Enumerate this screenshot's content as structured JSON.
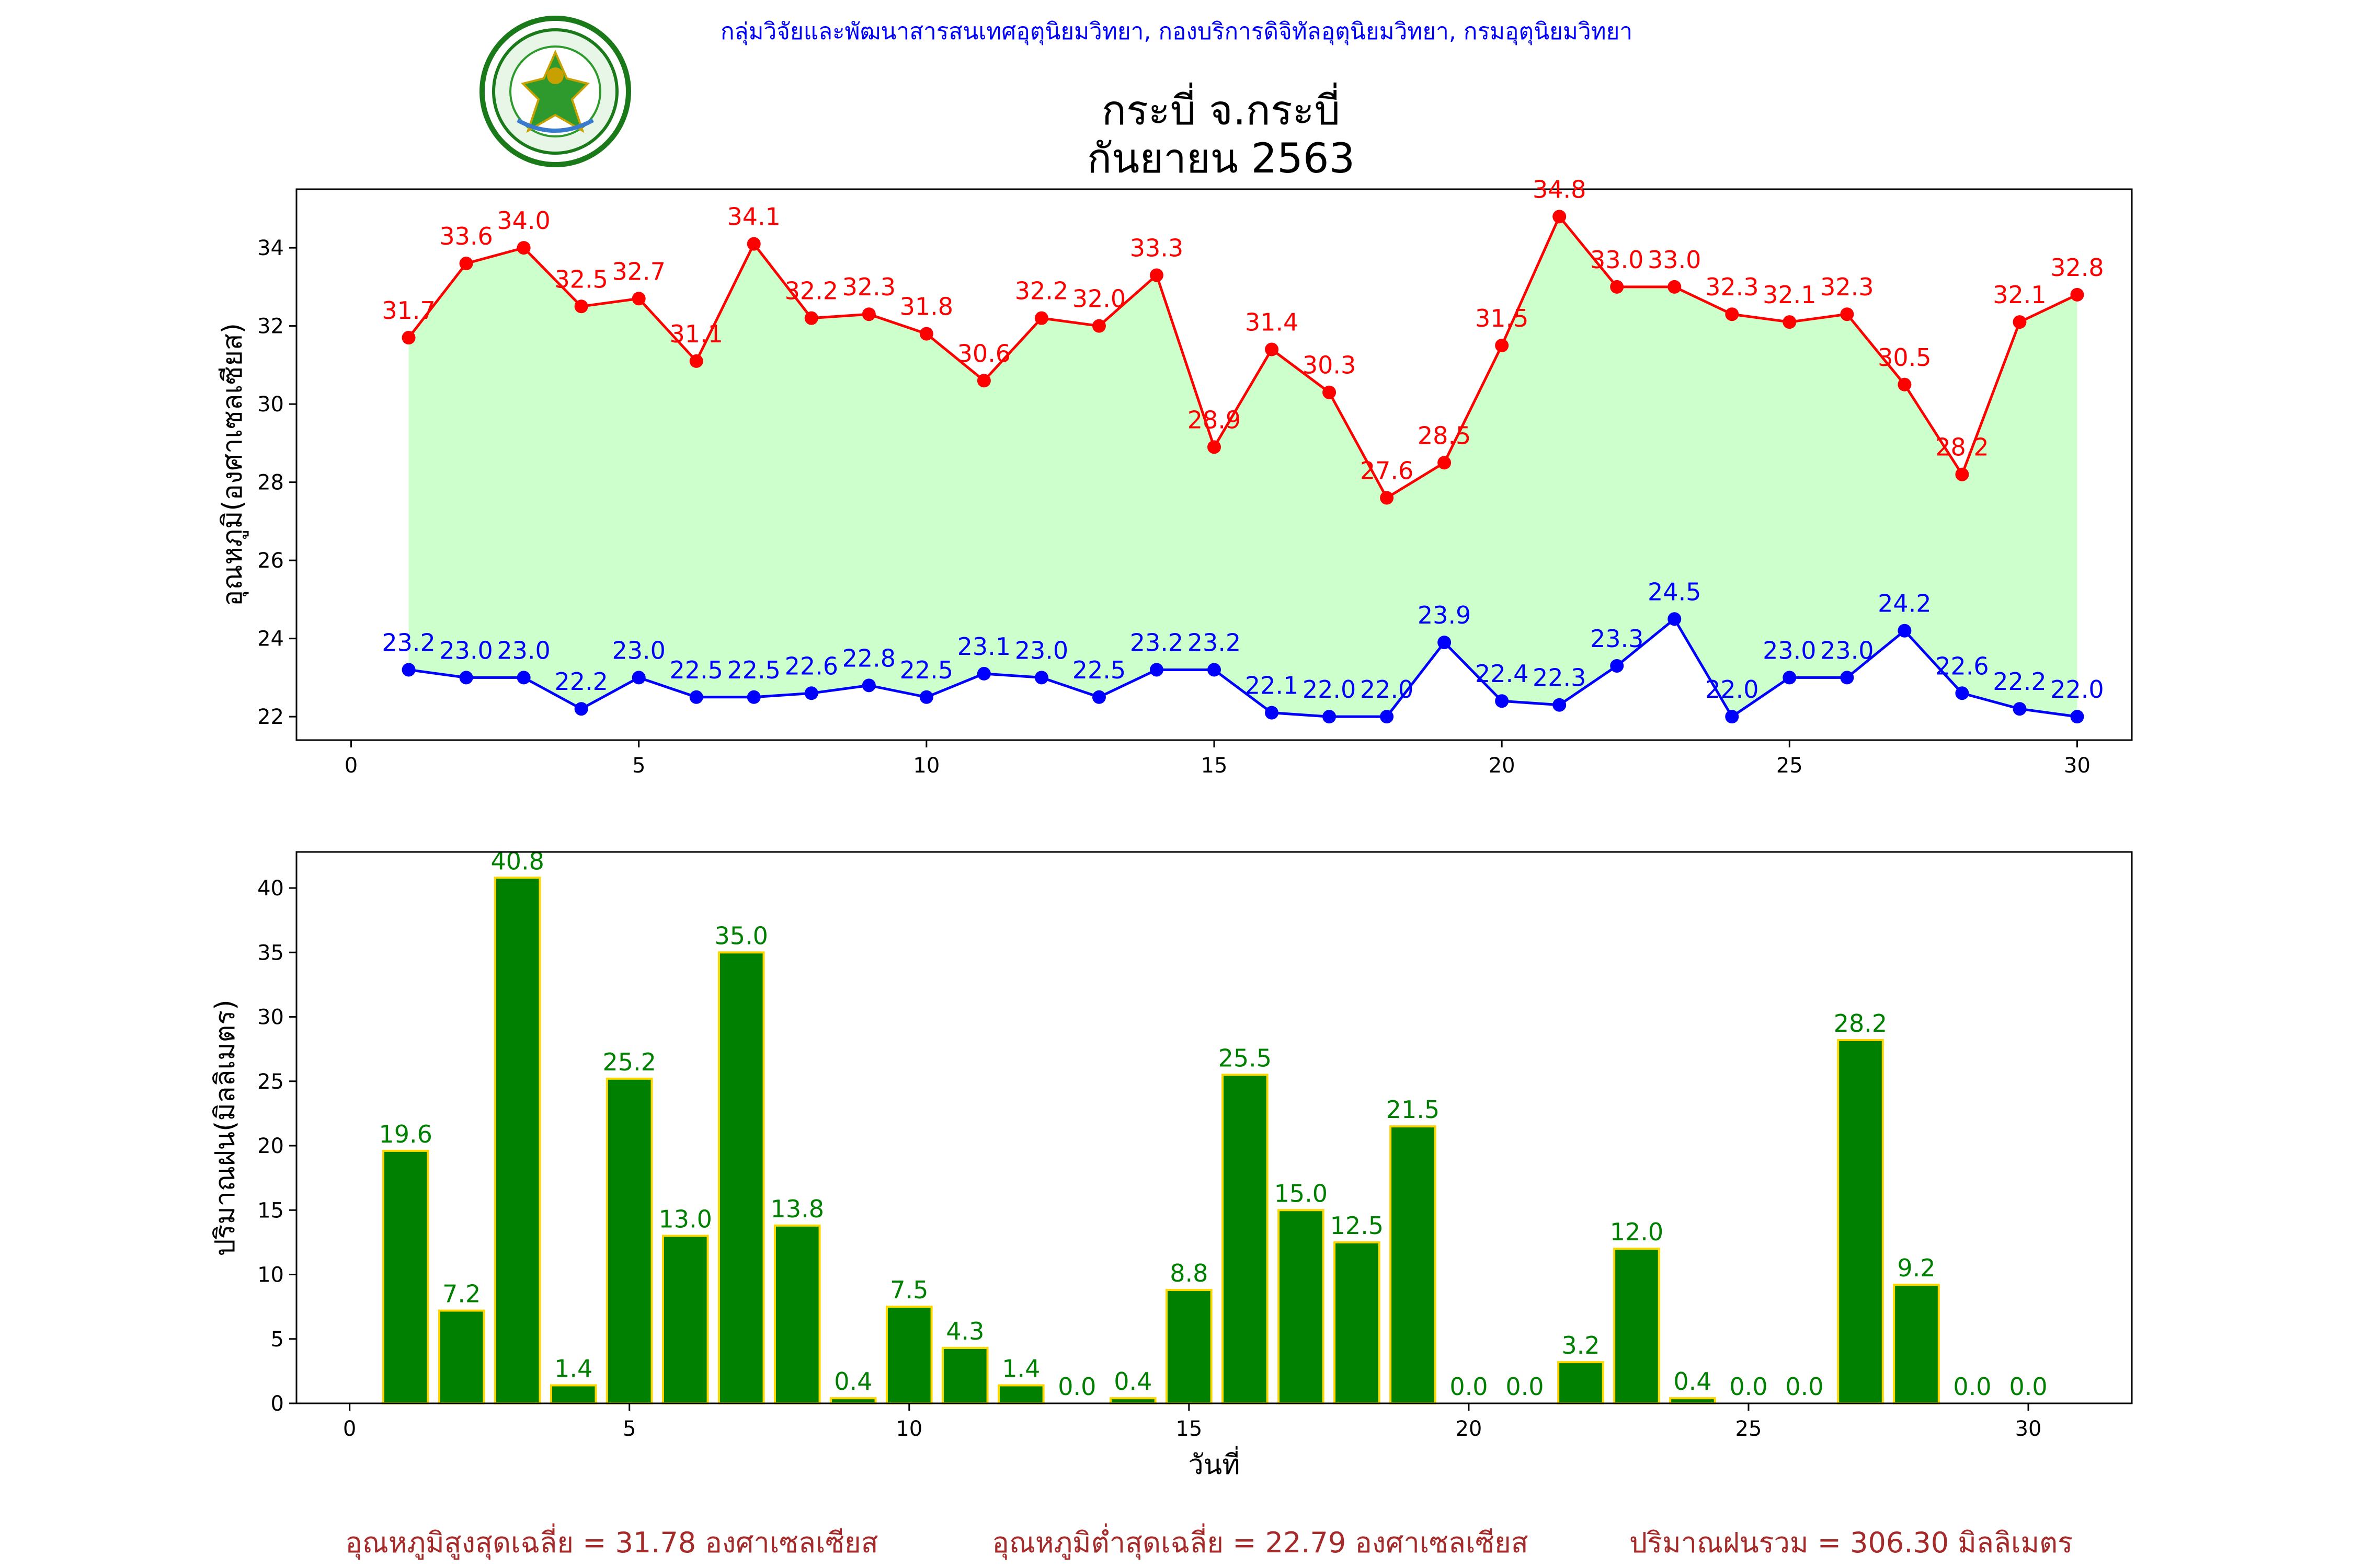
{
  "header": {
    "org_line": "กลุ่มวิจัยและพัฒนาสารสนเทศอุตุนิยมวิทยา, กองบริการดิจิทัลอุตุนิยมวิทยา, กรมอุตุนิยมวิทยา",
    "logo_name": "meteorological-department-seal"
  },
  "colors": {
    "max_temp": "#ff0000",
    "min_temp": "#0000ff",
    "temp_fill": "#ccffcc",
    "rain_bar": "#008000",
    "rain_edge": "#ffd700",
    "rain_label": "#008000",
    "summary": "#a52a2a",
    "header": "#0000ff"
  },
  "chart_data": [
    {
      "type": "line",
      "title": "กระบี่ จ.กระบี่",
      "subtitle": "กันยายน 2563",
      "xlabel": "",
      "ylabel": "อุณหภูมิ(องศาเซลเซียส)",
      "x": [
        1,
        2,
        3,
        4,
        5,
        6,
        7,
        8,
        9,
        10,
        11,
        12,
        13,
        14,
        15,
        16,
        17,
        18,
        19,
        20,
        21,
        22,
        23,
        24,
        25,
        26,
        27,
        28,
        29,
        30
      ],
      "xlim": [
        -0.95,
        30.95
      ],
      "ylim": [
        21.4,
        35.5
      ],
      "xticks": [
        0,
        5,
        10,
        15,
        20,
        25,
        30
      ],
      "yticks": [
        22,
        24,
        26,
        28,
        30,
        32,
        34
      ],
      "series": [
        {
          "key": "max",
          "values": [
            31.7,
            33.6,
            34.0,
            32.5,
            32.7,
            31.1,
            34.1,
            32.2,
            32.3,
            31.8,
            30.6,
            32.2,
            32.0,
            33.3,
            28.9,
            31.4,
            30.3,
            27.6,
            28.5,
            31.5,
            34.8,
            33.0,
            33.0,
            32.3,
            32.1,
            32.3,
            30.5,
            28.2,
            32.1,
            32.8
          ]
        },
        {
          "key": "min",
          "values": [
            23.2,
            23.0,
            23.0,
            22.2,
            23.0,
            22.5,
            22.5,
            22.6,
            22.8,
            22.5,
            23.1,
            23.0,
            22.5,
            23.2,
            23.2,
            22.1,
            22.0,
            22.0,
            23.9,
            22.4,
            22.3,
            23.3,
            24.5,
            22.0,
            23.0,
            23.0,
            24.2,
            22.6,
            22.2,
            22.0
          ]
        }
      ],
      "grid": false,
      "legend": "none"
    },
    {
      "type": "bar",
      "xlabel": "วันที่",
      "ylabel": "ปริมาณฝน(มิลลิเมตร)",
      "x": [
        1,
        2,
        3,
        4,
        5,
        6,
        7,
        8,
        9,
        10,
        11,
        12,
        13,
        14,
        15,
        16,
        17,
        18,
        19,
        20,
        21,
        22,
        23,
        24,
        25,
        26,
        27,
        28,
        29,
        30
      ],
      "values": [
        19.6,
        7.2,
        40.8,
        1.4,
        25.2,
        13.0,
        35.0,
        13.8,
        0.4,
        7.5,
        4.3,
        1.4,
        0.0,
        0.4,
        8.8,
        25.5,
        15.0,
        12.5,
        21.5,
        0.0,
        0.0,
        3.2,
        12.0,
        0.4,
        0.0,
        0.0,
        28.2,
        9.2,
        0.0,
        0.0
      ],
      "xlim": [
        -0.95,
        31.85
      ],
      "ylim": [
        0,
        42.8
      ],
      "xticks": [
        0,
        5,
        10,
        15,
        20,
        25,
        30
      ],
      "yticks": [
        0,
        5,
        10,
        15,
        20,
        25,
        30,
        35,
        40
      ],
      "grid": false,
      "legend": "none"
    }
  ],
  "summary": {
    "avg_max": "อุณหภูมิสูงสุดเฉลี่ย = 31.78 องศาเซลเซียส",
    "avg_min": "อุณหภูมิต่ำสุดเฉลี่ย = 22.79 องศาเซลเซียส",
    "total_rain": "ปริมาณฝนรวม = 306.30 มิลลิเมตร"
  }
}
